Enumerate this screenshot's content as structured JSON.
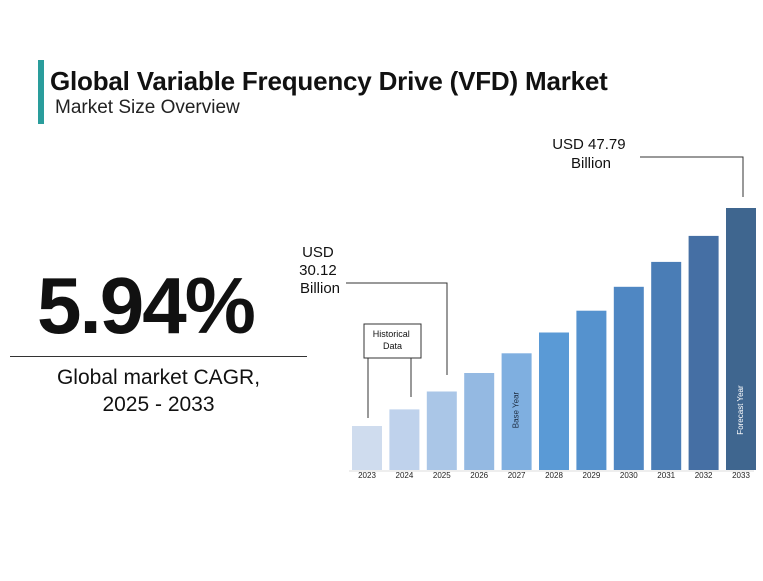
{
  "header": {
    "title": "Global Variable Frequency Drive (VFD) Market",
    "subtitle": "Market Size Overview"
  },
  "kpi": {
    "cagr_value": "5.94%",
    "cagr_label_line1": "Global market CAGR,",
    "cagr_label_line2": "2025 - 2033"
  },
  "callouts": {
    "start": {
      "line1": "USD",
      "line2": "30.12",
      "line3": "Billion"
    },
    "end": {
      "line1": "USD 47.79",
      "line2": "Billion"
    },
    "historical": {
      "line1": "Historical",
      "line2": "Data"
    }
  },
  "chart_data": {
    "type": "bar",
    "title": "Global Variable Frequency Drive (VFD) Market",
    "categories": [
      "2023",
      "2024",
      "2025",
      "2026",
      "2027",
      "2028",
      "2029",
      "2030",
      "2031",
      "2032",
      "2033"
    ],
    "values": [
      26.8,
      28.4,
      30.12,
      31.9,
      33.8,
      35.8,
      37.9,
      40.2,
      42.6,
      45.1,
      47.79
    ],
    "unit": "USD Billion",
    "bar_labels": {
      "2027": "Base Year",
      "2033": "Forecast Year"
    },
    "colors": [
      "#cfdcee",
      "#bfd2ec",
      "#aac6e7",
      "#94b9e2",
      "#7fafe0",
      "#5a9ad6",
      "#5592ce",
      "#4f87c3",
      "#4a7db6",
      "#456fa4",
      "#3f668f"
    ],
    "grid": false,
    "legend": "none"
  }
}
